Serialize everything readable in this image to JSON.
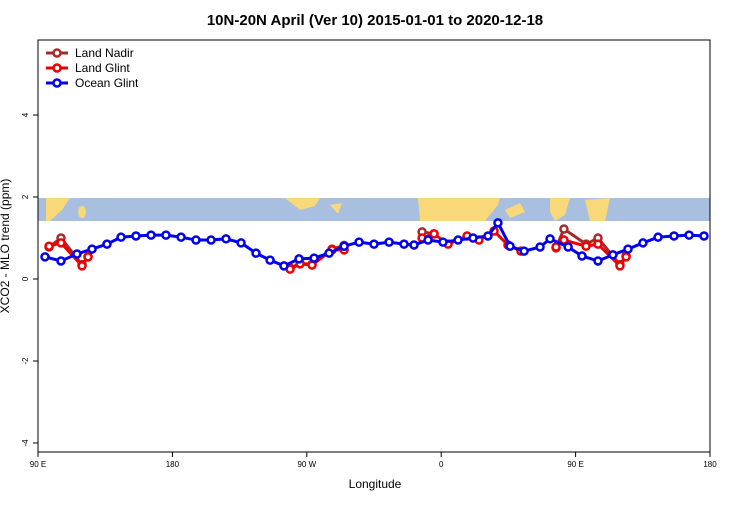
{
  "chart_data": {
    "type": "line",
    "title": "10N-20N April (Ver 10)   2015-01-01 to 2020-12-18",
    "xlabel": "Longitude",
    "ylabel": "XCO2 - MLO trend (ppm)",
    "xlim": [
      90,
      540
    ],
    "xticks": [
      {
        "value": 90,
        "label": "90 E"
      },
      180,
      {
        "value": 270,
        "label": "90 W"
      },
      {
        "value": 360,
        "label": "0"
      },
      {
        "value": 450,
        "label": "90 E"
      },
      {
        "value": 540,
        "label": "180"
      }
    ],
    "ylim": [
      -4.22,
      5.83
    ],
    "yticks": [
      -4,
      -2,
      0,
      2,
      4
    ],
    "legend": "top-left",
    "series": [
      {
        "name": "Land Nadir",
        "color": "#a52a2a",
        "x": [
          97.4,
          105.4,
          119.5,
          123.5,
          null,
          258.8,
          265.5,
          273.5,
          286.9,
          295.0,
          null,
          347.2,
          355.2,
          null,
          436.9,
          442.2,
          457.0,
          465.0,
          479.7,
          483.8
        ],
        "values": [
          0.78,
          1.0,
          0.35,
          0.54,
          null,
          0.27,
          0.38,
          0.36,
          0.73,
          0.82,
          null,
          1.15,
          1.1,
          null,
          0.76,
          1.22,
          0.85,
          1.0,
          0.35,
          0.56
        ]
      },
      {
        "name": "Land Glint",
        "color": "#ee0000",
        "x": [
          97.4,
          105.4,
          119.5,
          123.5,
          null,
          258.8,
          265.5,
          273.5,
          286.9,
          295.0,
          null,
          347.2,
          355.2,
          364.6,
          377.3,
          385.3,
          395.4,
          404.7,
          413.4,
          null,
          436.9,
          442.2,
          457.0,
          465.0,
          479.7,
          483.8
        ],
        "values": [
          0.8,
          0.88,
          0.32,
          0.54,
          null,
          0.24,
          0.37,
          0.34,
          0.71,
          0.71,
          null,
          1.0,
          1.1,
          0.85,
          1.05,
          0.95,
          1.17,
          0.83,
          0.68,
          null,
          0.78,
          0.95,
          0.8,
          0.85,
          0.32,
          0.54
        ]
      },
      {
        "name": "Ocean Glint",
        "color": "#0000ee",
        "x": [
          94.7,
          105.4,
          116.1,
          126.2,
          136.2,
          145.6,
          155.6,
          165.7,
          175.7,
          185.8,
          195.8,
          205.9,
          215.9,
          226.0,
          236.0,
          245.4,
          254.7,
          264.8,
          274.9,
          284.9,
          295.0,
          305.0,
          315.0,
          325.1,
          335.1,
          341.8,
          351.2,
          361.2,
          371.3,
          381.3,
          391.3,
          398.0,
          406.1,
          415.5,
          426.2,
          432.9,
          445.0,
          454.3,
          465.0,
          475.0,
          485.1,
          495.1,
          505.2,
          515.9,
          526.0,
          536.0
        ],
        "values": [
          0.54,
          0.44,
          0.61,
          0.73,
          0.85,
          1.02,
          1.05,
          1.07,
          1.07,
          1.02,
          0.95,
          0.95,
          0.98,
          0.88,
          0.63,
          0.46,
          0.32,
          0.49,
          0.51,
          0.63,
          0.8,
          0.9,
          0.85,
          0.9,
          0.85,
          0.83,
          0.95,
          0.9,
          0.95,
          1.0,
          1.05,
          1.37,
          0.8,
          0.68,
          0.78,
          0.98,
          0.78,
          0.56,
          0.44,
          0.59,
          0.73,
          0.88,
          1.02,
          1.05,
          1.07,
          1.05
        ]
      }
    ]
  }
}
